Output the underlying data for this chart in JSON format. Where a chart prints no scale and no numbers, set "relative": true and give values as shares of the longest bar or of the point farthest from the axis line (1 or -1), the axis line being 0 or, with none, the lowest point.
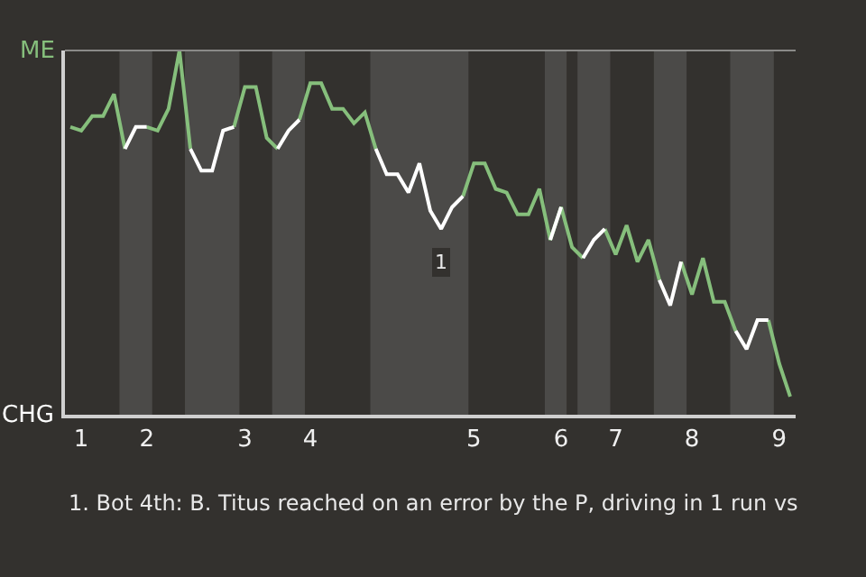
{
  "chart_data": {
    "type": "line",
    "relative": true,
    "categories": [
      null,
      "1",
      null,
      null,
      null,
      null,
      null,
      "2",
      null,
      null,
      null,
      null,
      null,
      null,
      null,
      null,
      "3",
      null,
      null,
      null,
      null,
      null,
      "4",
      null,
      null,
      null,
      null,
      null,
      null,
      null,
      null,
      null,
      null,
      null,
      null,
      null,
      null,
      "5",
      null,
      null,
      null,
      null,
      null,
      null,
      null,
      "6",
      null,
      null,
      null,
      null,
      "7",
      null,
      null,
      null,
      null,
      null,
      null,
      "8",
      null,
      null,
      null,
      null,
      null,
      null,
      null,
      "9",
      null
    ],
    "series": [
      {
        "color": "#86bf7c",
        "values": [
          0.79,
          0.78,
          0.82,
          0.82,
          0.88,
          0.73,
          null,
          0.79,
          0.78,
          0.84,
          1,
          0.73,
          null,
          null,
          null,
          0.79,
          0.9,
          0.9,
          0.76,
          0.73,
          null,
          0.81,
          0.91,
          0.91,
          0.84,
          0.84,
          0.8,
          0.83,
          0.73,
          null,
          null,
          null,
          null,
          null,
          null,
          null,
          0.6,
          0.69,
          0.69,
          0.62,
          0.61,
          0.55,
          0.55,
          0.62,
          0.48,
          0.57,
          0.46,
          0.43,
          null,
          0.51,
          0.44,
          0.52,
          0.42,
          0.48,
          0.37,
          null,
          0.42,
          0.33,
          0.43,
          0.31,
          0.31,
          0.23,
          null,
          null,
          0.26,
          0.14,
          0.05
        ]
      },
      {
        "color": "#ffffff",
        "values": [
          null,
          null,
          null,
          null,
          null,
          0.73,
          0.79,
          0.79,
          null,
          null,
          null,
          0.73,
          0.67,
          0.67,
          0.78,
          0.79,
          null,
          null,
          null,
          0.73,
          0.78,
          0.81,
          null,
          null,
          null,
          null,
          null,
          null,
          0.73,
          0.66,
          0.66,
          0.61,
          0.69,
          0.56,
          0.51,
          0.57,
          0.6,
          null,
          null,
          null,
          null,
          null,
          null,
          null,
          0.48,
          0.57,
          null,
          0.43,
          0.48,
          0.51,
          null,
          null,
          null,
          null,
          0.37,
          0.3,
          0.42,
          null,
          null,
          null,
          null,
          0.23,
          0.18,
          0.26,
          0.26,
          null,
          null
        ]
      }
    ],
    "legend": false,
    "marker": "none",
    "line_style": "solid",
    "annotations": [
      "ME",
      "CHG",
      "1",
      "1. Bot 4th: B. Titus reached on an error by the P, driving in 1 run vs"
    ]
  }
}
